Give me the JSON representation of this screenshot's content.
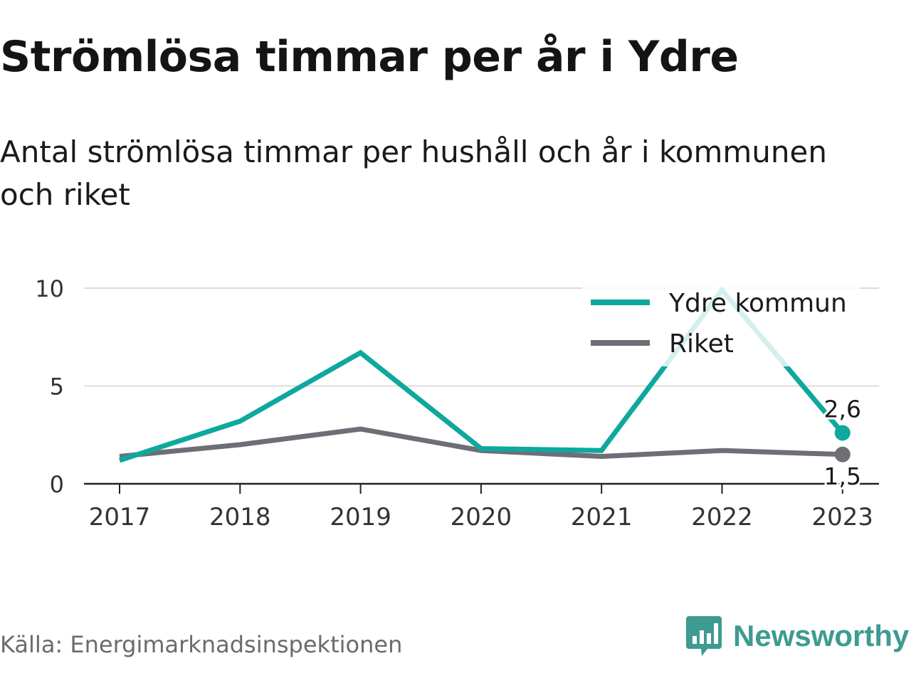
{
  "title": "Strömlösa timmar per år i Ydre",
  "subtitle": "Antal strömlösa timmar per hushåll och år i kommunen och riket",
  "source": "Källa: Energimarknadsinspektionen",
  "brand": {
    "name": "Newsworthy",
    "logo_icon": "newsworthy-logo-icon",
    "color": "#3d9b91"
  },
  "chart_data": {
    "type": "line",
    "x": [
      "2017",
      "2018",
      "2019",
      "2020",
      "2021",
      "2022",
      "2023"
    ],
    "ylim": [
      0,
      10
    ],
    "yticks": [
      0,
      5,
      10
    ],
    "ytick_labels": [
      "0",
      "5",
      "10"
    ],
    "grid": true,
    "legend_position": "top-right",
    "series": [
      {
        "name": "Ydre kommun",
        "color": "#0ea89e",
        "values": [
          1.2,
          3.2,
          6.7,
          1.8,
          1.7,
          9.9,
          2.6
        ],
        "end_label": "2,6"
      },
      {
        "name": "Riket",
        "color": "#6e6e76",
        "values": [
          1.4,
          2.0,
          2.8,
          1.7,
          1.4,
          1.7,
          1.5
        ],
        "end_label": "1,5"
      }
    ]
  }
}
